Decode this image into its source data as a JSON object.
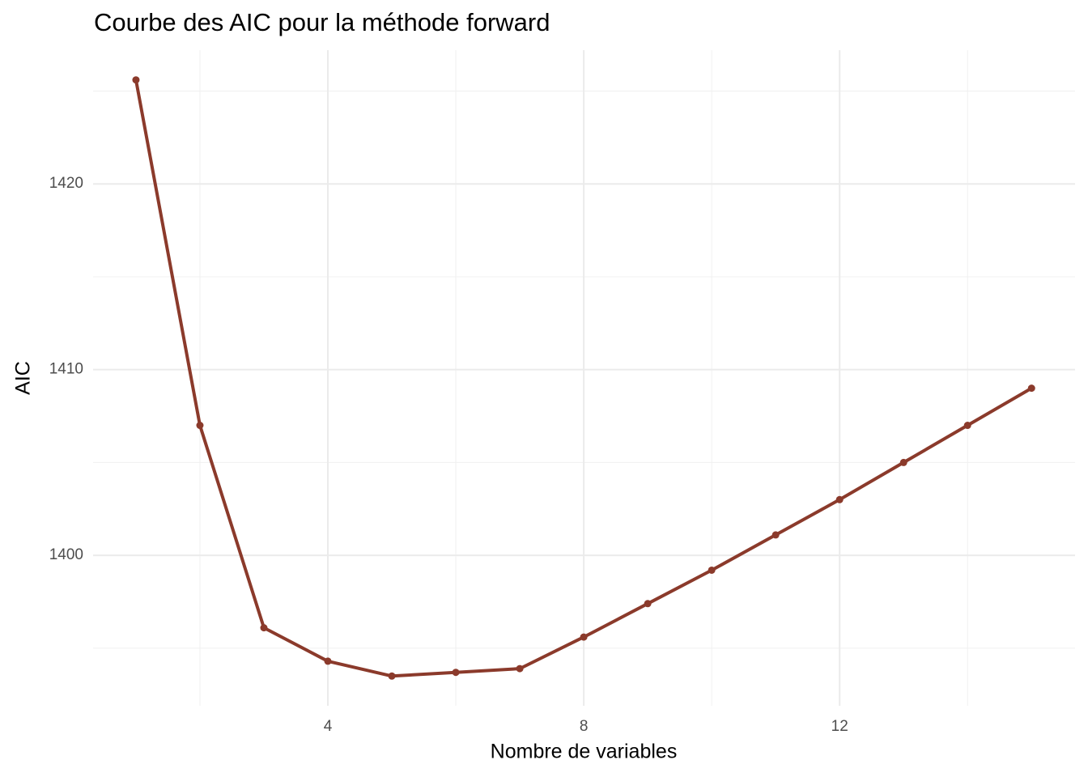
{
  "chart_data": {
    "type": "line",
    "title": "Courbe des AIC pour la méthode forward",
    "x_label": "Nombre de variables",
    "y_label": "AIC",
    "x": [
      1,
      2,
      3,
      4,
      5,
      6,
      7,
      8,
      9,
      10,
      11,
      12,
      13,
      14,
      15
    ],
    "series": [
      {
        "name": "AIC",
        "color": "#8b3a2b",
        "values": [
          1425.6,
          1407.0,
          1396.1,
          1394.3,
          1393.5,
          1393.7,
          1393.9,
          1395.6,
          1397.4,
          1399.2,
          1401.1,
          1403.0,
          1405.0,
          1407.0,
          1409.0
        ]
      }
    ],
    "xlim": [
      0.33,
      15.68
    ],
    "ylim": [
      1391.9,
      1427.2
    ],
    "xticks": [
      4,
      8,
      12
    ],
    "yticks": [
      1400,
      1410,
      1420
    ],
    "x_minor_ticks": [
      2,
      6,
      10,
      14
    ],
    "y_minor_ticks": [
      1395,
      1405,
      1415,
      1425
    ],
    "grid": true,
    "markers": true
  }
}
